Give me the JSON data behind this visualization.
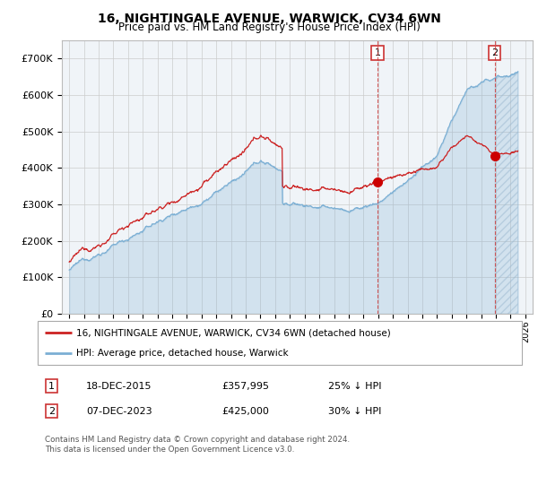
{
  "title": "16, NIGHTINGALE AVENUE, WARWICK, CV34 6WN",
  "subtitle": "Price paid vs. HM Land Registry's House Price Index (HPI)",
  "hpi_color": "#7bafd4",
  "price_color": "#cc2222",
  "dot_color": "#cc0000",
  "marker1_x": 2015.96,
  "marker2_x": 2023.92,
  "marker1_price": 357995,
  "marker2_price": 425000,
  "ylim": [
    0,
    750000
  ],
  "xlim": [
    1994.5,
    2026.5
  ],
  "ytick_labels": [
    "£0",
    "£100K",
    "£200K",
    "£300K",
    "£400K",
    "£500K",
    "£600K",
    "£700K"
  ],
  "ytick_values": [
    0,
    100000,
    200000,
    300000,
    400000,
    500000,
    600000,
    700000
  ],
  "xtick_years": [
    1995,
    1996,
    1997,
    1998,
    1999,
    2000,
    2001,
    2002,
    2003,
    2004,
    2005,
    2006,
    2007,
    2008,
    2009,
    2010,
    2011,
    2012,
    2013,
    2014,
    2015,
    2016,
    2017,
    2018,
    2019,
    2020,
    2021,
    2022,
    2023,
    2024,
    2025,
    2026
  ],
  "legend_red_label": "16, NIGHTINGALE AVENUE, WARWICK, CV34 6WN (detached house)",
  "legend_blue_label": "HPI: Average price, detached house, Warwick",
  "table_row1": [
    "1",
    "18-DEC-2015",
    "£357,995",
    "25% ↓ HPI"
  ],
  "table_row2": [
    "2",
    "07-DEC-2023",
    "£425,000",
    "30% ↓ HPI"
  ],
  "footer": "Contains HM Land Registry data © Crown copyright and database right 2024.\nThis data is licensed under the Open Government Licence v3.0.",
  "background_color": "#ffffff",
  "plot_bg_color": "#f0f4f8",
  "grid_color": "#cccccc"
}
